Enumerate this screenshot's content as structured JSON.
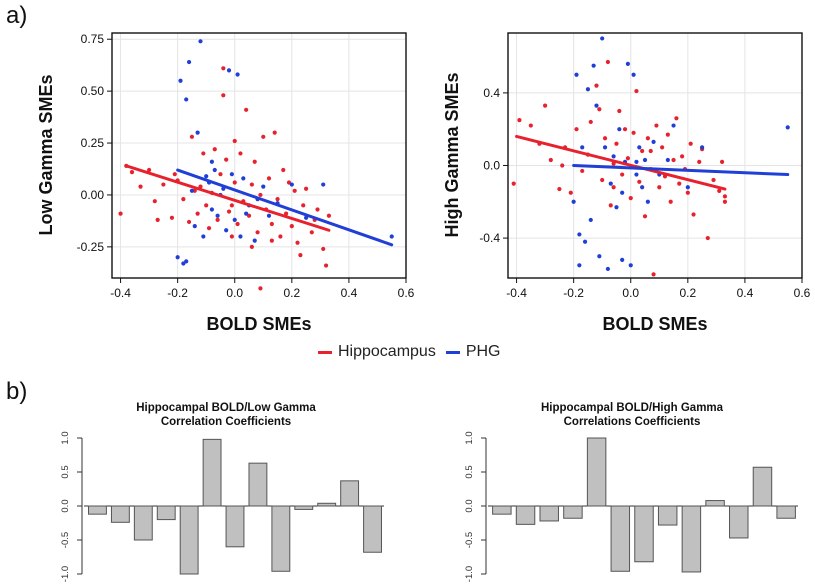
{
  "panel_labels": {
    "a": "a)",
    "b": "b)"
  },
  "legend": [
    {
      "label": "Hippocampus",
      "color": "#e8212e"
    },
    {
      "label": "PHG",
      "color": "#1f3fd6"
    }
  ],
  "colors": {
    "hippocampus": "#e8212e",
    "phg": "#1f3fd6",
    "bar_fill": "#c0c0c0",
    "bar_stroke": "#555555",
    "grid": "#e4e4e4"
  },
  "chart_data": [
    {
      "type": "scatter",
      "xlabel": "BOLD SMEs",
      "ylabel": "Low Gamma SMEs",
      "xlim": [
        -0.43,
        0.6
      ],
      "ylim": [
        -0.4,
        0.78
      ],
      "xticks": [
        -0.4,
        -0.2,
        0.0,
        0.2,
        0.4,
        0.6
      ],
      "xtick_labels": [
        "-0.4",
        "-0.2",
        "0.0",
        "0.2",
        "0.4",
        "0.6"
      ],
      "yticks": [
        -0.25,
        0.0,
        0.25,
        0.5,
        0.75
      ],
      "ytick_labels": [
        "-0.25",
        "0.00",
        "0.25",
        "0.50",
        "0.75"
      ],
      "grid": true,
      "series": [
        {
          "name": "Hippocampus",
          "color": "#e8212e",
          "fit": [
            [
              -0.38,
              0.14
            ],
            [
              0.33,
              -0.17
            ]
          ],
          "points": [
            [
              -0.4,
              -0.09
            ],
            [
              -0.38,
              0.14
            ],
            [
              -0.36,
              0.11
            ],
            [
              -0.33,
              0.04
            ],
            [
              -0.3,
              0.12
            ],
            [
              -0.28,
              -0.03
            ],
            [
              -0.27,
              -0.12
            ],
            [
              -0.25,
              0.05
            ],
            [
              -0.22,
              -0.11
            ],
            [
              -0.2,
              0.07
            ],
            [
              -0.18,
              -0.02
            ],
            [
              -0.16,
              -0.13
            ],
            [
              -0.15,
              0.28
            ],
            [
              -0.13,
              -0.09
            ],
            [
              -0.12,
              0.04
            ],
            [
              -0.11,
              0.2
            ],
            [
              -0.1,
              -0.05
            ],
            [
              -0.09,
              -0.16
            ],
            [
              -0.08,
              0.01
            ],
            [
              -0.07,
              0.22
            ],
            [
              -0.06,
              -0.12
            ],
            [
              -0.05,
              0.1
            ],
            [
              -0.04,
              0.48
            ],
            [
              -0.04,
              0.61
            ],
            [
              -0.03,
              0.17
            ],
            [
              -0.02,
              -0.08
            ],
            [
              -0.01,
              -0.2
            ],
            [
              0.0,
              0.26
            ],
            [
              0.0,
              0.06
            ],
            [
              0.01,
              -0.14
            ],
            [
              0.02,
              0.2
            ],
            [
              0.03,
              -0.03
            ],
            [
              0.04,
              0.41
            ],
            [
              0.05,
              -0.1
            ],
            [
              0.06,
              0.05
            ],
            [
              0.07,
              0.16
            ],
            [
              0.08,
              -0.18
            ],
            [
              0.09,
              0.0
            ],
            [
              0.09,
              -0.45
            ],
            [
              0.1,
              0.28
            ],
            [
              0.11,
              -0.07
            ],
            [
              0.12,
              0.08
            ],
            [
              0.13,
              -0.14
            ],
            [
              0.14,
              0.3
            ],
            [
              0.15,
              -0.02
            ],
            [
              0.16,
              -0.2
            ],
            [
              0.17,
              0.12
            ],
            [
              0.18,
              -0.09
            ],
            [
              0.19,
              0.06
            ],
            [
              0.2,
              -0.15
            ],
            [
              0.21,
              0.02
            ],
            [
              0.22,
              -0.23
            ],
            [
              0.24,
              -0.05
            ],
            [
              0.25,
              0.03
            ],
            [
              0.27,
              -0.18
            ],
            [
              0.29,
              -0.07
            ],
            [
              0.31,
              -0.26
            ],
            [
              0.32,
              -0.34
            ],
            [
              0.33,
              -0.1
            ],
            [
              -0.21,
              0.1
            ],
            [
              -0.14,
              0.02
            ],
            [
              -0.01,
              -0.05
            ],
            [
              0.06,
              -0.25
            ],
            [
              0.13,
              -0.22
            ],
            [
              0.23,
              -0.29
            ],
            [
              0.28,
              -0.12
            ]
          ]
        },
        {
          "name": "PHG",
          "color": "#1f3fd6",
          "fit": [
            [
              -0.2,
              0.12
            ],
            [
              0.55,
              -0.24
            ]
          ],
          "points": [
            [
              -0.2,
              -0.3
            ],
            [
              -0.19,
              0.55
            ],
            [
              -0.18,
              -0.33
            ],
            [
              -0.17,
              0.46
            ],
            [
              -0.16,
              0.64
            ],
            [
              -0.15,
              0.02
            ],
            [
              -0.14,
              -0.15
            ],
            [
              -0.13,
              0.3
            ],
            [
              -0.12,
              0.74
            ],
            [
              -0.11,
              -0.2
            ],
            [
              -0.1,
              0.09
            ],
            [
              -0.09,
              0.06
            ],
            [
              -0.08,
              -0.07
            ],
            [
              -0.07,
              0.12
            ],
            [
              -0.06,
              -0.1
            ],
            [
              -0.05,
              0.0
            ],
            [
              -0.04,
              0.03
            ],
            [
              -0.03,
              -0.17
            ],
            [
              -0.02,
              0.6
            ],
            [
              -0.01,
              0.1
            ],
            [
              0.0,
              -0.12
            ],
            [
              0.01,
              0.58
            ],
            [
              0.02,
              -0.2
            ],
            [
              0.03,
              0.08
            ],
            [
              0.05,
              -0.05
            ],
            [
              0.07,
              -0.22
            ],
            [
              0.08,
              -0.02
            ],
            [
              0.1,
              0.04
            ],
            [
              0.12,
              -0.1
            ],
            [
              0.15,
              -0.04
            ],
            [
              0.2,
              0.05
            ],
            [
              0.25,
              -0.11
            ],
            [
              0.31,
              0.05
            ],
            [
              0.55,
              -0.2
            ],
            [
              -0.17,
              -0.32
            ],
            [
              -0.08,
              0.16
            ],
            [
              0.04,
              -0.09
            ]
          ]
        }
      ]
    },
    {
      "type": "scatter",
      "xlabel": "BOLD SMEs",
      "ylabel": "High Gamma SMEs",
      "xlim": [
        -0.43,
        0.6
      ],
      "ylim": [
        -0.62,
        0.73
      ],
      "xticks": [
        -0.4,
        -0.2,
        0.0,
        0.2,
        0.4,
        0.6
      ],
      "xtick_labels": [
        "-0.4",
        "-0.2",
        "0.0",
        "0.2",
        "0.4",
        "0.6"
      ],
      "yticks": [
        -0.4,
        0.0,
        0.4
      ],
      "ytick_labels": [
        "-0.4",
        "0.0",
        "0.4"
      ],
      "grid": true,
      "series": [
        {
          "name": "Hippocampus",
          "color": "#e8212e",
          "fit": [
            [
              -0.4,
              0.16
            ],
            [
              0.33,
              -0.13
            ]
          ],
          "points": [
            [
              -0.41,
              -0.1
            ],
            [
              -0.39,
              0.25
            ],
            [
              -0.35,
              0.22
            ],
            [
              -0.32,
              0.12
            ],
            [
              -0.3,
              0.33
            ],
            [
              -0.28,
              0.03
            ],
            [
              -0.25,
              -0.13
            ],
            [
              -0.23,
              0.1
            ],
            [
              -0.21,
              -0.15
            ],
            [
              -0.19,
              0.2
            ],
            [
              -0.17,
              -0.03
            ],
            [
              -0.15,
              0.06
            ],
            [
              -0.14,
              0.24
            ],
            [
              -0.12,
              0.44
            ],
            [
              -0.11,
              0.31
            ],
            [
              -0.1,
              -0.08
            ],
            [
              -0.09,
              0.15
            ],
            [
              -0.08,
              0.57
            ],
            [
              -0.07,
              -0.22
            ],
            [
              -0.06,
              0.01
            ],
            [
              -0.05,
              0.12
            ],
            [
              -0.04,
              0.3
            ],
            [
              -0.03,
              -0.05
            ],
            [
              -0.02,
              0.2
            ],
            [
              -0.01,
              0.04
            ],
            [
              0.0,
              -0.18
            ],
            [
              0.01,
              0.18
            ],
            [
              0.02,
              0.41
            ],
            [
              0.03,
              -0.09
            ],
            [
              0.04,
              0.08
            ],
            [
              0.05,
              -0.28
            ],
            [
              0.06,
              0.15
            ],
            [
              0.07,
              -0.02
            ],
            [
              0.08,
              -0.6
            ],
            [
              0.09,
              0.22
            ],
            [
              0.1,
              -0.12
            ],
            [
              0.11,
              0.1
            ],
            [
              0.12,
              -0.06
            ],
            [
              0.13,
              0.17
            ],
            [
              0.14,
              -0.2
            ],
            [
              0.15,
              0.03
            ],
            [
              0.16,
              0.26
            ],
            [
              0.17,
              -0.1
            ],
            [
              0.18,
              0.05
            ],
            [
              0.2,
              -0.15
            ],
            [
              0.21,
              0.12
            ],
            [
              0.22,
              -0.27
            ],
            [
              0.24,
              0.02
            ],
            [
              0.25,
              0.09
            ],
            [
              0.27,
              -0.4
            ],
            [
              0.29,
              -0.08
            ],
            [
              0.31,
              -0.14
            ],
            [
              0.32,
              0.02
            ],
            [
              0.33,
              -0.2
            ],
            [
              0.33,
              -0.17
            ],
            [
              -0.24,
              0.0
            ],
            [
              -0.06,
              -0.12
            ],
            [
              0.07,
              0.08
            ],
            [
              0.19,
              -0.02
            ]
          ]
        },
        {
          "name": "PHG",
          "color": "#1f3fd6",
          "fit": [
            [
              -0.2,
              0.0
            ],
            [
              0.55,
              -0.05
            ]
          ],
          "points": [
            [
              -0.2,
              -0.2
            ],
            [
              -0.19,
              0.5
            ],
            [
              -0.18,
              -0.38
            ],
            [
              -0.17,
              0.1
            ],
            [
              -0.16,
              -0.42
            ],
            [
              -0.15,
              0.42
            ],
            [
              -0.14,
              -0.3
            ],
            [
              -0.13,
              0.55
            ],
            [
              -0.12,
              0.33
            ],
            [
              -0.11,
              -0.5
            ],
            [
              -0.1,
              0.7
            ],
            [
              -0.09,
              0.1
            ],
            [
              -0.08,
              -0.57
            ],
            [
              -0.07,
              -0.1
            ],
            [
              -0.06,
              0.05
            ],
            [
              -0.05,
              -0.23
            ],
            [
              -0.04,
              0.2
            ],
            [
              -0.03,
              -0.15
            ],
            [
              -0.02,
              0.02
            ],
            [
              -0.01,
              0.56
            ],
            [
              0.0,
              -0.55
            ],
            [
              0.01,
              0.5
            ],
            [
              0.02,
              -0.05
            ],
            [
              0.03,
              0.1
            ],
            [
              0.04,
              -0.12
            ],
            [
              0.05,
              0.03
            ],
            [
              0.06,
              -0.2
            ],
            [
              0.08,
              0.13
            ],
            [
              0.1,
              -0.05
            ],
            [
              0.13,
              0.03
            ],
            [
              0.15,
              0.22
            ],
            [
              0.2,
              -0.12
            ],
            [
              0.25,
              0.1
            ],
            [
              0.55,
              0.21
            ],
            [
              -0.18,
              -0.55
            ],
            [
              -0.03,
              -0.52
            ],
            [
              0.02,
              0.02
            ]
          ]
        }
      ]
    },
    {
      "type": "bar",
      "title": "Hippocampal BOLD/Low Gamma\nCorrelation Coefficients",
      "ylim": [
        -1.0,
        1.0
      ],
      "yticks": [
        -1.0,
        -0.5,
        0.0,
        0.5,
        1.0
      ],
      "ytick_labels": [
        "-1.0",
        "-0.5",
        "0.0",
        "0.5",
        "1.0"
      ],
      "values": [
        -0.12,
        -0.24,
        -0.5,
        -0.2,
        -1.0,
        0.98,
        -0.6,
        0.63,
        -0.96,
        -0.05,
        0.04,
        0.37,
        -0.68
      ]
    },
    {
      "type": "bar",
      "title": "Hippocampal BOLD/High Gamma\nCorrelations Coefficients",
      "ylim": [
        -1.0,
        1.0
      ],
      "yticks": [
        -1.0,
        -0.5,
        0.0,
        0.5,
        1.0
      ],
      "ytick_labels": [
        "-1.0",
        "-0.5",
        "0.0",
        "0.5",
        "1.0"
      ],
      "values": [
        -0.12,
        -0.27,
        -0.22,
        -0.18,
        1.0,
        -0.96,
        -0.82,
        -0.28,
        -0.97,
        0.08,
        -0.47,
        0.57,
        -0.18
      ]
    }
  ]
}
